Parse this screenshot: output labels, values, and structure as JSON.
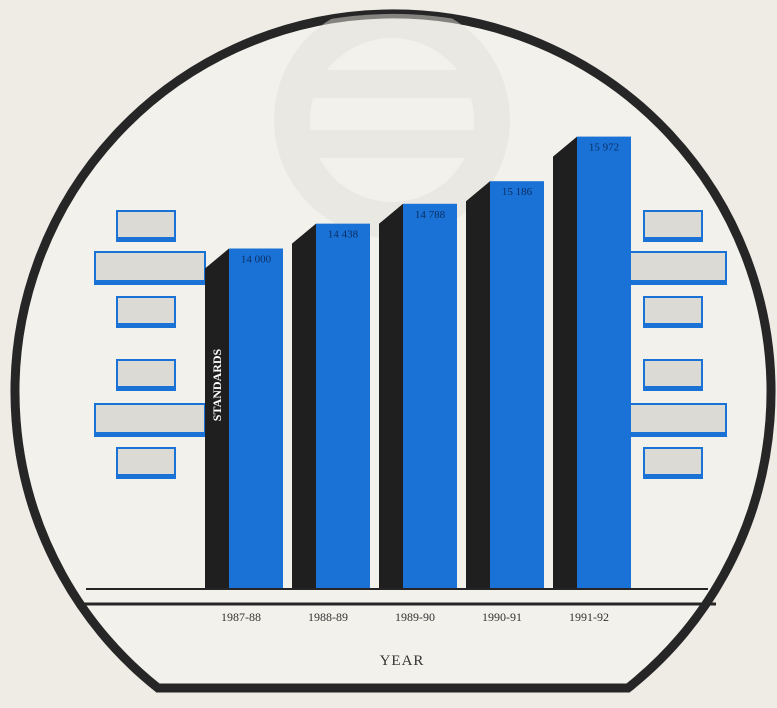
{
  "chart_data": {
    "type": "bar",
    "title": "",
    "xlabel": "YEAR",
    "ylabel": "STANDARDS",
    "categories": [
      "1987-88",
      "1988-89",
      "1989-90",
      "1990-91",
      "1991-92"
    ],
    "values": [
      14000,
      14438,
      14788,
      15186,
      15972
    ],
    "value_labels": [
      "14 000",
      "14 438",
      "14 788",
      "15 186",
      "15 972"
    ],
    "grid": false,
    "legend": "none",
    "colors": {
      "bar": "#1a72d6",
      "bar_shadow": "#1f1f1f",
      "ring": "#262626",
      "background": "#efece6",
      "panel": "#dcdad4",
      "panel_edge": "#1a72d6"
    }
  }
}
